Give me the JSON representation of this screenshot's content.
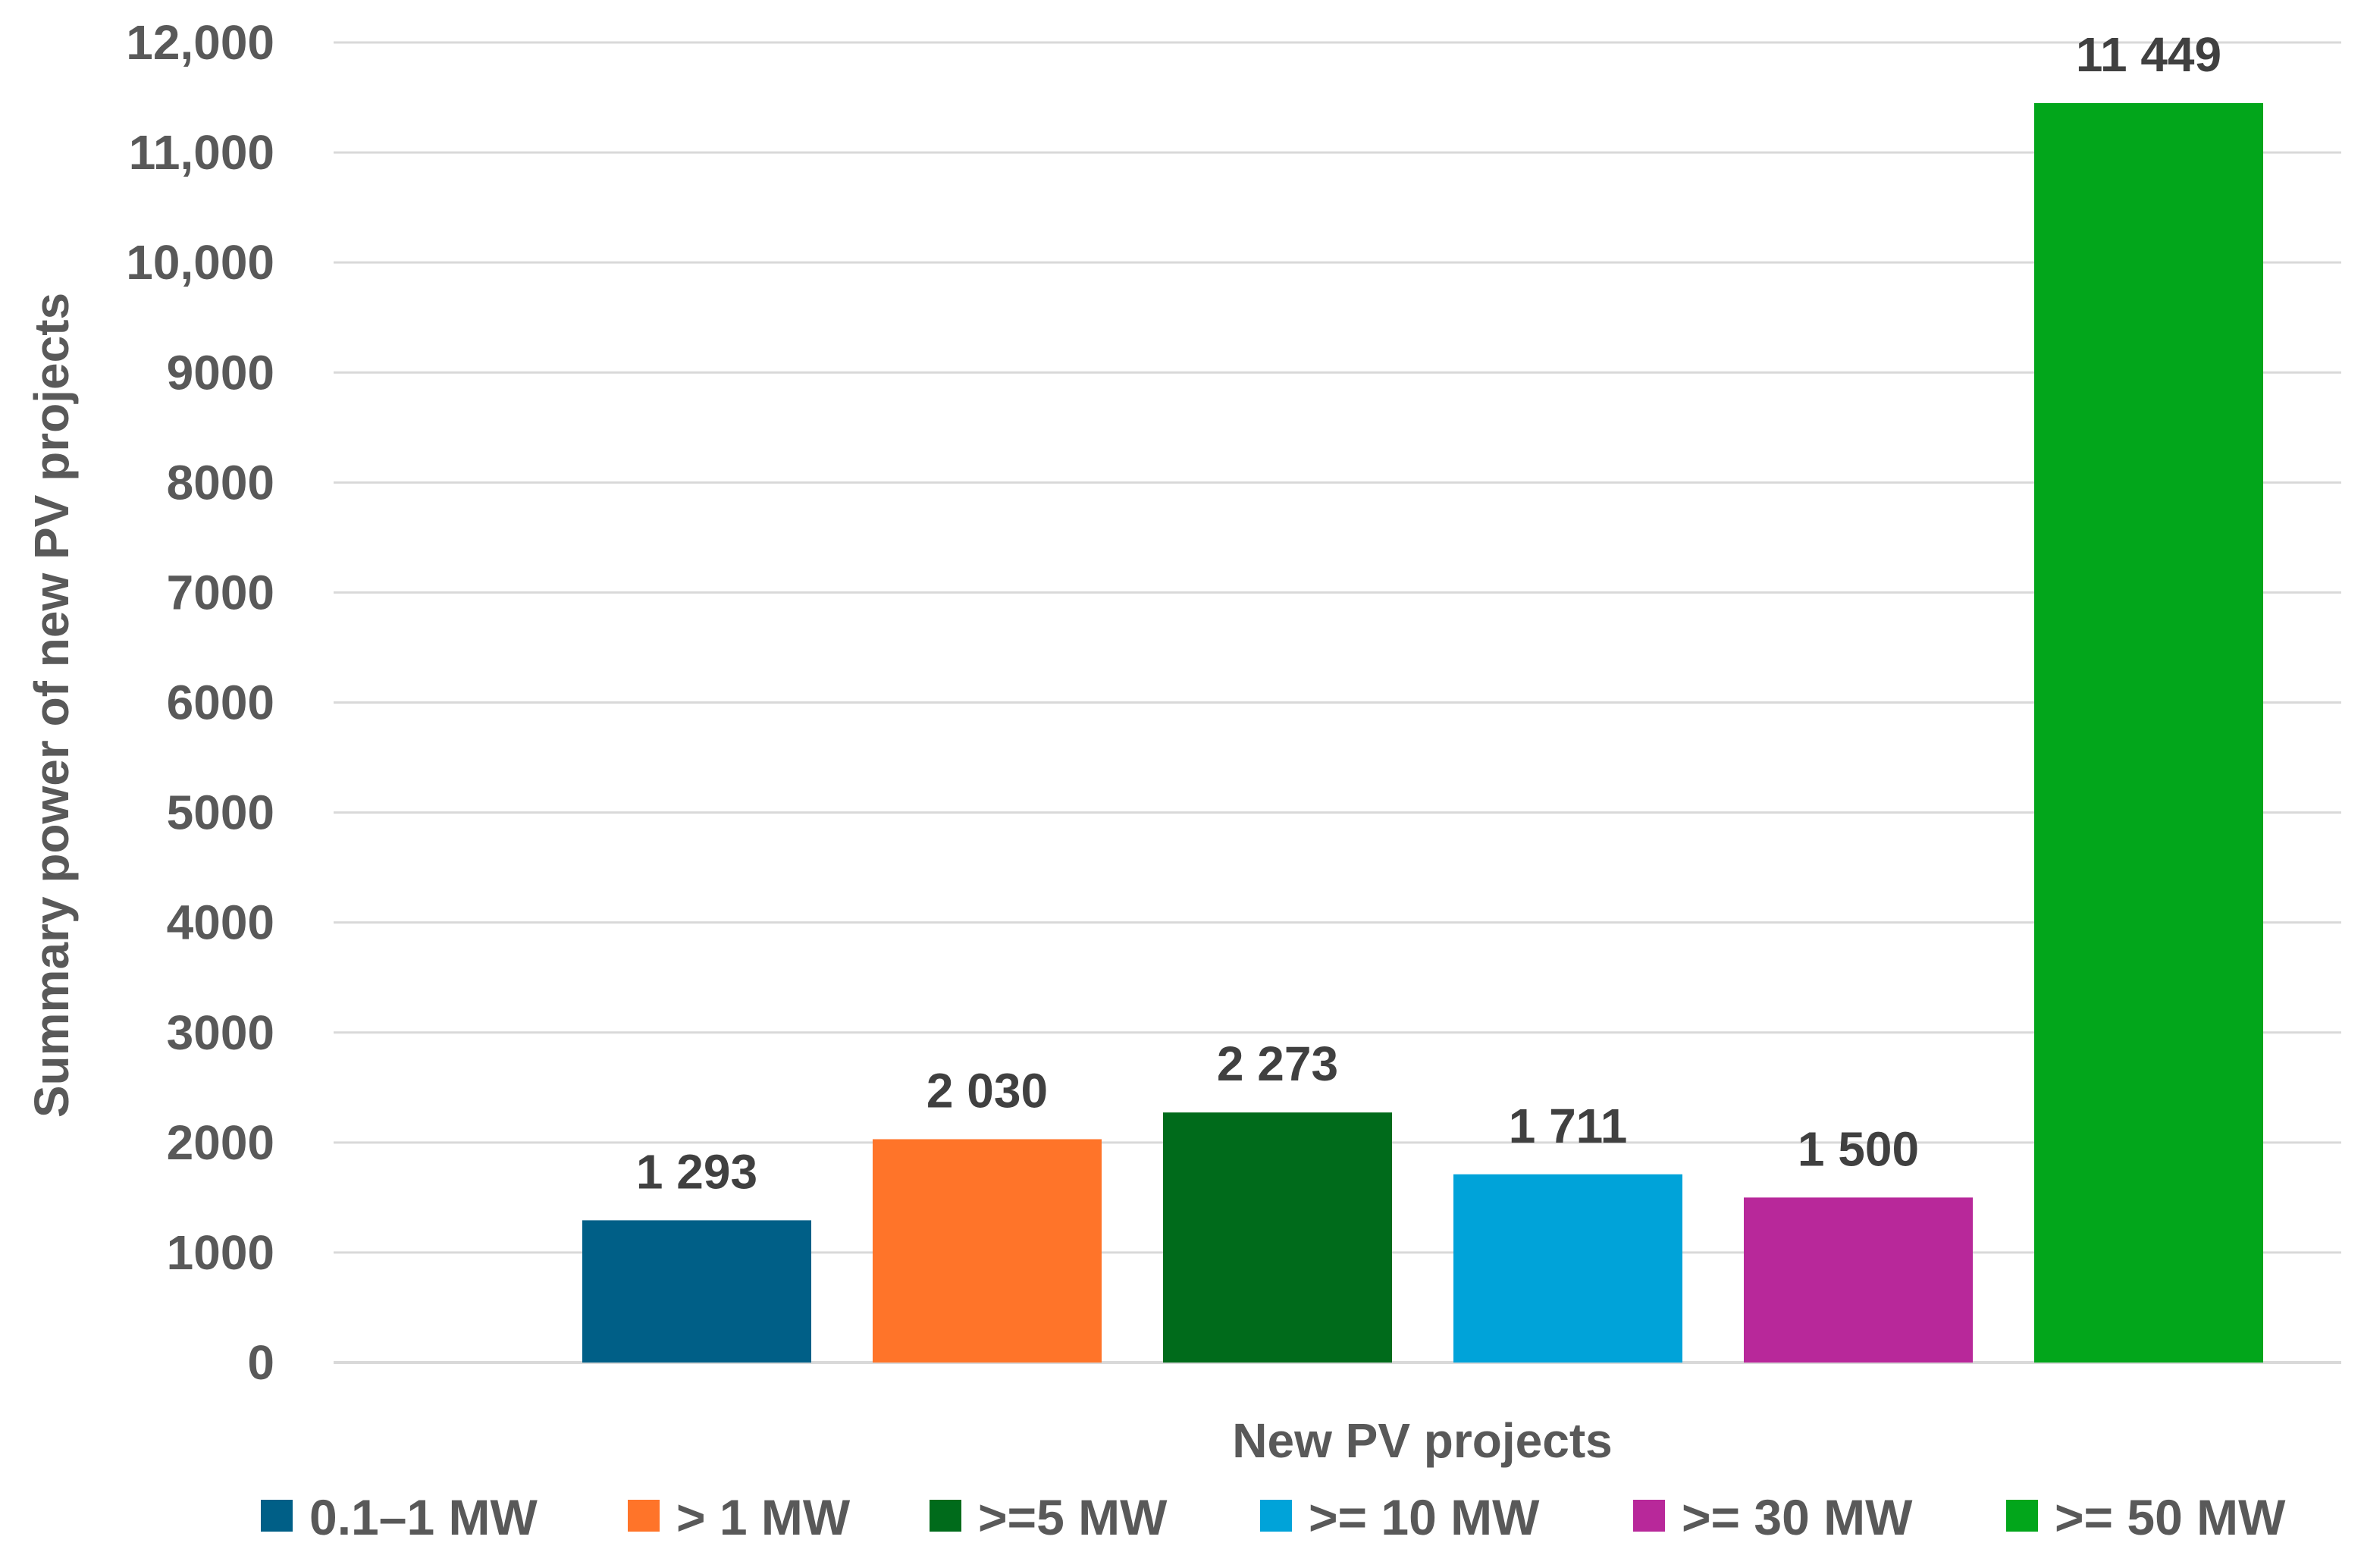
{
  "chart_data": {
    "type": "bar",
    "title": "",
    "xlabel": "New PV projects",
    "ylabel": "Summary power of new PV projects",
    "ylim": [
      0,
      12000
    ],
    "yticks": [
      0,
      1000,
      2000,
      3000,
      4000,
      5000,
      6000,
      7000,
      8000,
      9000,
      10000,
      11000,
      12000
    ],
    "ytick_labels": [
      "0",
      "1000",
      "2000",
      "3000",
      "4000",
      "5000",
      "6000",
      "7000",
      "8000",
      "9000",
      "10,000",
      "11,000",
      "12,000"
    ],
    "grid": true,
    "legend_position": "bottom",
    "series": [
      {
        "name": "0.1–1 MW",
        "value": 1293,
        "label": "1 293",
        "color": "#005f87"
      },
      {
        "name": "> 1 MW",
        "value": 2030,
        "label": "2 030",
        "color": "#ff7429"
      },
      {
        "name": ">=5 MW",
        "value": 2273,
        "label": "2 273",
        "color": "#006b1b"
      },
      {
        "name": ">= 10 MW",
        "value": 1711,
        "label": "1 711",
        "color": "#00a3d9"
      },
      {
        "name": ">= 30 MW",
        "value": 1500,
        "label": "1 500",
        "color": "#b8289a"
      },
      {
        "name": ">= 50 MW",
        "value": 11449,
        "label": "11 449",
        "color": "#02a61b"
      }
    ]
  }
}
